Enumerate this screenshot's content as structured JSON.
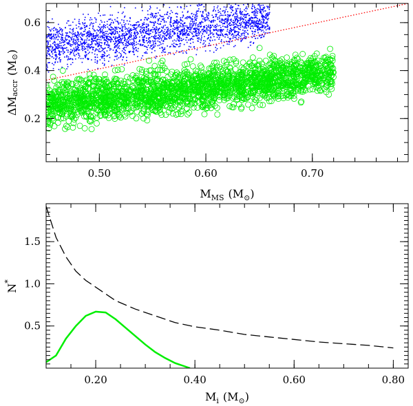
{
  "chart_data": [
    {
      "type": "scatter",
      "title": "",
      "xlabel": "M_MS (M_⊙)",
      "xlabel_main": "M",
      "xlabel_sub": "MS",
      "xlabel_unit": "(M",
      "xlabel_unit_sym": "⊙",
      "xlabel_unit_close": ")",
      "ylabel": "ΔM_accr (M_⊙)",
      "ylabel_main": "ΔM",
      "ylabel_sub": "accr",
      "ylabel_unit": "(M",
      "ylabel_unit_sym": "⊙",
      "ylabel_unit_close": ")",
      "xlim": [
        0.45,
        0.79
      ],
      "ylim": [
        0.02,
        0.68
      ],
      "xticks": [
        0.5,
        0.6,
        0.7
      ],
      "xtick_labels": [
        "0.50",
        "0.60",
        "0.70"
      ],
      "yticks": [
        0.2,
        0.4,
        0.6
      ],
      "ytick_labels": [
        "0.2",
        "0.4",
        "0.6"
      ],
      "grid": false,
      "series": [
        {
          "name": "blue points",
          "color": "#0000ff",
          "marker": "dot",
          "x_range": [
            0.45,
            0.66
          ],
          "center_line": [
            [
              0.45,
              0.5
            ],
            [
              0.66,
              0.62
            ]
          ],
          "y_spread": 0.045
        },
        {
          "name": "green circles",
          "color": "#00ee00",
          "marker": "open-circle",
          "x_range": [
            0.45,
            0.72
          ],
          "center_line": [
            [
              0.45,
              0.26
            ],
            [
              0.72,
              0.39
            ]
          ],
          "y_spread": 0.045
        },
        {
          "name": "red dotted line",
          "color": "#ff0000",
          "type": "line",
          "style": "dotted",
          "x": [
            0.45,
            0.79
          ],
          "y": [
            0.36,
            0.68
          ]
        }
      ]
    },
    {
      "type": "line",
      "title": "",
      "xlabel": "M_i (M_⊙)",
      "xlabel_main": "M",
      "xlabel_sub": "i",
      "xlabel_unit": "(M",
      "xlabel_unit_sym": "⊙",
      "xlabel_unit_close": ")",
      "ylabel": "N*",
      "ylabel_main": "N",
      "ylabel_sup": "*",
      "xlim": [
        0.1,
        0.83
      ],
      "ylim": [
        0.0,
        1.95
      ],
      "xticks": [
        0.2,
        0.4,
        0.6,
        0.8
      ],
      "xtick_labels": [
        "0.20",
        "0.40",
        "0.60",
        "0.80"
      ],
      "yticks": [
        0.5,
        1.0,
        1.5
      ],
      "ytick_labels": [
        "0.5",
        "1.0",
        "1.5"
      ],
      "grid": false,
      "series": [
        {
          "name": "dashed curve",
          "color": "#000000",
          "style": "dashed",
          "x": [
            0.1,
            0.12,
            0.14,
            0.16,
            0.18,
            0.2,
            0.24,
            0.28,
            0.32,
            0.36,
            0.4,
            0.45,
            0.5,
            0.55,
            0.6,
            0.65,
            0.7,
            0.75,
            0.8
          ],
          "y": [
            1.92,
            1.55,
            1.32,
            1.15,
            1.04,
            0.96,
            0.8,
            0.7,
            0.62,
            0.54,
            0.49,
            0.45,
            0.4,
            0.37,
            0.34,
            0.31,
            0.29,
            0.27,
            0.24
          ]
        },
        {
          "name": "green curve",
          "color": "#00ee00",
          "style": "solid",
          "x": [
            0.1,
            0.12,
            0.14,
            0.16,
            0.18,
            0.2,
            0.22,
            0.24,
            0.26,
            0.28,
            0.3,
            0.32,
            0.34,
            0.36,
            0.37,
            0.38,
            0.39
          ],
          "y": [
            0.07,
            0.15,
            0.35,
            0.5,
            0.62,
            0.67,
            0.66,
            0.58,
            0.48,
            0.38,
            0.28,
            0.19,
            0.12,
            0.06,
            0.04,
            0.02,
            0.0
          ]
        }
      ]
    }
  ]
}
